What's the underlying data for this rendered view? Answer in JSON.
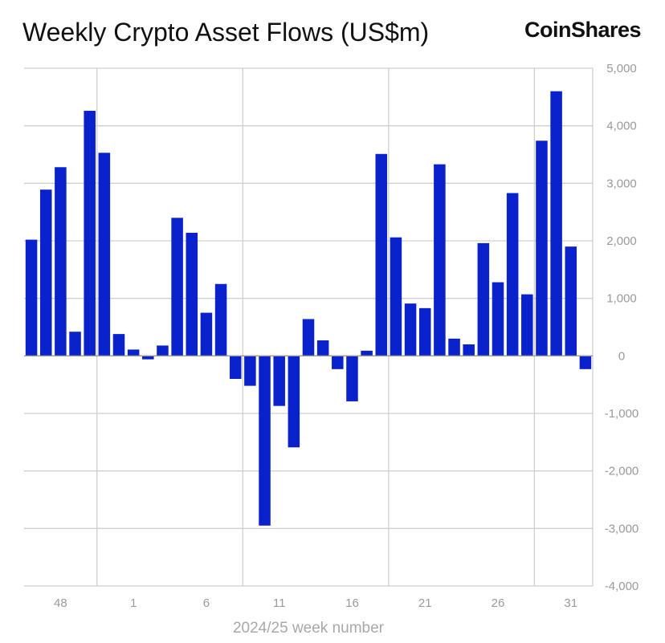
{
  "header": {
    "title": "Weekly Crypto Asset Flows (US$m)",
    "logo_text": "CoinShares"
  },
  "chart_data": {
    "type": "bar",
    "title": "Weekly Crypto Asset Flows (US$m)",
    "xlabel": "2024/25 week number",
    "ylabel": "",
    "ylim": [
      -4000,
      5000
    ],
    "y_ticks": [
      5000,
      4000,
      3000,
      2000,
      1000,
      0,
      -1000,
      -2000,
      -3000,
      -4000
    ],
    "y_tick_labels": [
      "5,000",
      "4,000",
      "3,000",
      "2,000",
      "1,000",
      "0",
      "-1,000",
      "-2,000",
      "-3,000",
      "-4,000"
    ],
    "y_axis_side": "right",
    "grid": true,
    "x_tick_labels": [
      "48",
      "1",
      "6",
      "11",
      "16",
      "21",
      "26",
      "31"
    ],
    "bar_color": "#0a22cc",
    "categories": [
      "46",
      "47",
      "48",
      "49",
      "50",
      "51",
      "52",
      "1",
      "2",
      "3",
      "4",
      "5",
      "6",
      "7",
      "8",
      "9",
      "10",
      "11",
      "12",
      "13",
      "14",
      "15",
      "16",
      "17",
      "18",
      "19",
      "20",
      "21",
      "22",
      "23",
      "24",
      "25",
      "26",
      "27",
      "28",
      "29",
      "30",
      "31",
      "32"
    ],
    "values": [
      2020,
      2890,
      3280,
      420,
      4260,
      3530,
      380,
      110,
      -60,
      180,
      2400,
      2140,
      750,
      1250,
      -400,
      -520,
      -2950,
      -870,
      -1590,
      640,
      270,
      -230,
      -790,
      90,
      3510,
      2060,
      910,
      830,
      3330,
      300,
      200,
      1960,
      1280,
      2830,
      1070,
      3740,
      4600,
      1900,
      -230
    ]
  }
}
